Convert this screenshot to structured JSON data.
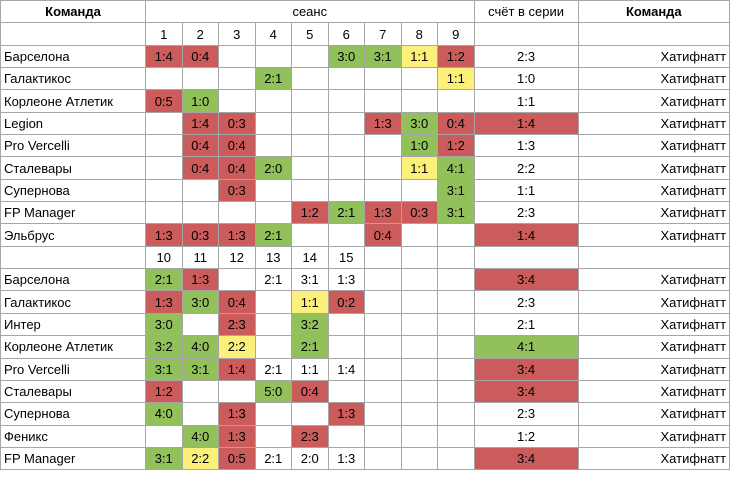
{
  "header": {
    "team_left": "Команда",
    "session": "сеанс",
    "series_score": "счёт в серии",
    "team_right": "Команда"
  },
  "colors": {
    "loss": "#cc5b5b",
    "win": "#92c05a",
    "draw": "#fbf07a"
  },
  "sections": [
    {
      "session_numbers": [
        "1",
        "2",
        "3",
        "4",
        "5",
        "6",
        "7",
        "8",
        "9"
      ],
      "rows": [
        {
          "team": "Барселона",
          "cells": [
            {
              "v": "1:4",
              "c": "r"
            },
            {
              "v": "0:4",
              "c": "r"
            },
            {
              "v": "",
              "c": ""
            },
            {
              "v": "",
              "c": ""
            },
            {
              "v": "",
              "c": ""
            },
            {
              "v": "3:0",
              "c": "g"
            },
            {
              "v": "3:1",
              "c": "g"
            },
            {
              "v": "1:1",
              "c": "y"
            },
            {
              "v": "1:2",
              "c": "r"
            }
          ],
          "series": {
            "v": "2:3",
            "c": ""
          },
          "opponent": "Хатифнатт"
        },
        {
          "team": "Галактикос",
          "cells": [
            {
              "v": "",
              "c": ""
            },
            {
              "v": "",
              "c": ""
            },
            {
              "v": "",
              "c": ""
            },
            {
              "v": "2:1",
              "c": "g"
            },
            {
              "v": "",
              "c": ""
            },
            {
              "v": "",
              "c": ""
            },
            {
              "v": "",
              "c": ""
            },
            {
              "v": "",
              "c": ""
            },
            {
              "v": "1:1",
              "c": "y"
            }
          ],
          "series": {
            "v": "1:0",
            "c": ""
          },
          "opponent": "Хатифнатт"
        },
        {
          "team": "Корлеоне Атлетик",
          "cells": [
            {
              "v": "0:5",
              "c": "r"
            },
            {
              "v": "1:0",
              "c": "g"
            },
            {
              "v": "",
              "c": ""
            },
            {
              "v": "",
              "c": ""
            },
            {
              "v": "",
              "c": ""
            },
            {
              "v": "",
              "c": ""
            },
            {
              "v": "",
              "c": ""
            },
            {
              "v": "",
              "c": ""
            },
            {
              "v": "",
              "c": ""
            }
          ],
          "series": {
            "v": "1:1",
            "c": ""
          },
          "opponent": "Хатифнатт"
        },
        {
          "team": "Legion",
          "cells": [
            {
              "v": "",
              "c": ""
            },
            {
              "v": "1:4",
              "c": "r"
            },
            {
              "v": "0:3",
              "c": "r"
            },
            {
              "v": "",
              "c": ""
            },
            {
              "v": "",
              "c": ""
            },
            {
              "v": "",
              "c": ""
            },
            {
              "v": "1:3",
              "c": "r"
            },
            {
              "v": "3:0",
              "c": "g"
            },
            {
              "v": "0:4",
              "c": "r"
            }
          ],
          "series": {
            "v": "1:4",
            "c": "r"
          },
          "opponent": "Хатифнатт"
        },
        {
          "team": "Pro Vercelli",
          "cells": [
            {
              "v": "",
              "c": ""
            },
            {
              "v": "0:4",
              "c": "r"
            },
            {
              "v": "0:4",
              "c": "r"
            },
            {
              "v": "",
              "c": ""
            },
            {
              "v": "",
              "c": ""
            },
            {
              "v": "",
              "c": ""
            },
            {
              "v": "",
              "c": ""
            },
            {
              "v": "1:0",
              "c": "g"
            },
            {
              "v": "1:2",
              "c": "r"
            }
          ],
          "series": {
            "v": "1:3",
            "c": ""
          },
          "opponent": "Хатифнатт"
        },
        {
          "team": "Сталевары",
          "cells": [
            {
              "v": "",
              "c": ""
            },
            {
              "v": "0:4",
              "c": "r"
            },
            {
              "v": "0:4",
              "c": "r"
            },
            {
              "v": "2:0",
              "c": "g"
            },
            {
              "v": "",
              "c": ""
            },
            {
              "v": "",
              "c": ""
            },
            {
              "v": "",
              "c": ""
            },
            {
              "v": "1:1",
              "c": "y"
            },
            {
              "v": "4:1",
              "c": "g"
            }
          ],
          "series": {
            "v": "2:2",
            "c": ""
          },
          "opponent": "Хатифнатт"
        },
        {
          "team": "Супернова",
          "cells": [
            {
              "v": "",
              "c": ""
            },
            {
              "v": "",
              "c": ""
            },
            {
              "v": "0:3",
              "c": "r"
            },
            {
              "v": "",
              "c": ""
            },
            {
              "v": "",
              "c": ""
            },
            {
              "v": "",
              "c": ""
            },
            {
              "v": "",
              "c": ""
            },
            {
              "v": "",
              "c": ""
            },
            {
              "v": "3:1",
              "c": "g"
            }
          ],
          "series": {
            "v": "1:1",
            "c": ""
          },
          "opponent": "Хатифнатт"
        },
        {
          "team": "FP Manager",
          "cells": [
            {
              "v": "",
              "c": ""
            },
            {
              "v": "",
              "c": ""
            },
            {
              "v": "",
              "c": ""
            },
            {
              "v": "",
              "c": ""
            },
            {
              "v": "1:2",
              "c": "r"
            },
            {
              "v": "2:1",
              "c": "g"
            },
            {
              "v": "1:3",
              "c": "r"
            },
            {
              "v": "0:3",
              "c": "r"
            },
            {
              "v": "3:1",
              "c": "g"
            }
          ],
          "series": {
            "v": "2:3",
            "c": ""
          },
          "opponent": "Хатифнатт"
        },
        {
          "team": "Эльбрус",
          "cells": [
            {
              "v": "1:3",
              "c": "r"
            },
            {
              "v": "0:3",
              "c": "r"
            },
            {
              "v": "1:3",
              "c": "r"
            },
            {
              "v": "2:1",
              "c": "g"
            },
            {
              "v": "",
              "c": ""
            },
            {
              "v": "",
              "c": ""
            },
            {
              "v": "0:4",
              "c": "r"
            },
            {
              "v": "",
              "c": ""
            },
            {
              "v": "",
              "c": ""
            }
          ],
          "series": {
            "v": "1:4",
            "c": "r"
          },
          "opponent": "Хатифнатт"
        }
      ]
    },
    {
      "session_numbers": [
        "10",
        "11",
        "12",
        "13",
        "14",
        "15",
        "",
        "",
        ""
      ],
      "rows": [
        {
          "team": "Барселона",
          "cells": [
            {
              "v": "2:1",
              "c": "g"
            },
            {
              "v": "1:3",
              "c": "r"
            },
            {
              "v": "",
              "c": ""
            },
            {
              "v": "2:1",
              "c": ""
            },
            {
              "v": "3:1",
              "c": ""
            },
            {
              "v": "1:3",
              "c": ""
            },
            {
              "v": "",
              "c": ""
            },
            {
              "v": "",
              "c": ""
            },
            {
              "v": "",
              "c": ""
            }
          ],
          "series": {
            "v": "3:4",
            "c": "r"
          },
          "opponent": "Хатифнатт"
        },
        {
          "team": "Галактикос",
          "cells": [
            {
              "v": "1:3",
              "c": "r"
            },
            {
              "v": "3:0",
              "c": "g"
            },
            {
              "v": "0:4",
              "c": "r"
            },
            {
              "v": "",
              "c": ""
            },
            {
              "v": "1:1",
              "c": "y"
            },
            {
              "v": "0:2",
              "c": "r"
            },
            {
              "v": "",
              "c": ""
            },
            {
              "v": "",
              "c": ""
            },
            {
              "v": "",
              "c": ""
            }
          ],
          "series": {
            "v": "2:3",
            "c": ""
          },
          "opponent": "Хатифнатт"
        },
        {
          "team": "Интер",
          "cells": [
            {
              "v": "3:0",
              "c": "g"
            },
            {
              "v": "",
              "c": ""
            },
            {
              "v": "2:3",
              "c": "r"
            },
            {
              "v": "",
              "c": ""
            },
            {
              "v": "3:2",
              "c": "g"
            },
            {
              "v": "",
              "c": ""
            },
            {
              "v": "",
              "c": ""
            },
            {
              "v": "",
              "c": ""
            },
            {
              "v": "",
              "c": ""
            }
          ],
          "series": {
            "v": "2:1",
            "c": ""
          },
          "opponent": "Хатифнатт"
        },
        {
          "team": "Корлеоне Атлетик",
          "cells": [
            {
              "v": "3:2",
              "c": "g"
            },
            {
              "v": "4:0",
              "c": "g"
            },
            {
              "v": "2:2",
              "c": "y"
            },
            {
              "v": "",
              "c": ""
            },
            {
              "v": "2:1",
              "c": "g"
            },
            {
              "v": "",
              "c": ""
            },
            {
              "v": "",
              "c": ""
            },
            {
              "v": "",
              "c": ""
            },
            {
              "v": "",
              "c": ""
            }
          ],
          "series": {
            "v": "4:1",
            "c": "g"
          },
          "opponent": "Хатифнатт"
        },
        {
          "team": "Pro Vercelli",
          "cells": [
            {
              "v": "3:1",
              "c": "g"
            },
            {
              "v": "3:1",
              "c": "g"
            },
            {
              "v": "1:4",
              "c": "r"
            },
            {
              "v": "2:1",
              "c": ""
            },
            {
              "v": "1:1",
              "c": ""
            },
            {
              "v": "1:4",
              "c": ""
            },
            {
              "v": "",
              "c": ""
            },
            {
              "v": "",
              "c": ""
            },
            {
              "v": "",
              "c": ""
            }
          ],
          "series": {
            "v": "3:4",
            "c": "r"
          },
          "opponent": "Хатифнатт"
        },
        {
          "team": "Сталевары",
          "cells": [
            {
              "v": "1:2",
              "c": "r"
            },
            {
              "v": "",
              "c": ""
            },
            {
              "v": "",
              "c": ""
            },
            {
              "v": "5:0",
              "c": "g"
            },
            {
              "v": "0:4",
              "c": "r"
            },
            {
              "v": "",
              "c": ""
            },
            {
              "v": "",
              "c": ""
            },
            {
              "v": "",
              "c": ""
            },
            {
              "v": "",
              "c": ""
            }
          ],
          "series": {
            "v": "3:4",
            "c": "r"
          },
          "opponent": "Хатифнатт"
        },
        {
          "team": "Супернова",
          "cells": [
            {
              "v": "4:0",
              "c": "g"
            },
            {
              "v": "",
              "c": ""
            },
            {
              "v": "1:3",
              "c": "r"
            },
            {
              "v": "",
              "c": ""
            },
            {
              "v": "",
              "c": ""
            },
            {
              "v": "1:3",
              "c": "r"
            },
            {
              "v": "",
              "c": ""
            },
            {
              "v": "",
              "c": ""
            },
            {
              "v": "",
              "c": ""
            }
          ],
          "series": {
            "v": "2:3",
            "c": ""
          },
          "opponent": "Хатифнатт"
        },
        {
          "team": "Феникс",
          "cells": [
            {
              "v": "",
              "c": ""
            },
            {
              "v": "4:0",
              "c": "g"
            },
            {
              "v": "1:3",
              "c": "r"
            },
            {
              "v": "",
              "c": ""
            },
            {
              "v": "2:3",
              "c": "r"
            },
            {
              "v": "",
              "c": ""
            },
            {
              "v": "",
              "c": ""
            },
            {
              "v": "",
              "c": ""
            },
            {
              "v": "",
              "c": ""
            }
          ],
          "series": {
            "v": "1:2",
            "c": ""
          },
          "opponent": "Хатифнатт"
        },
        {
          "team": "FP Manager",
          "cells": [
            {
              "v": "3:1",
              "c": "g"
            },
            {
              "v": "2:2",
              "c": "y"
            },
            {
              "v": "0:5",
              "c": "r"
            },
            {
              "v": "2:1",
              "c": ""
            },
            {
              "v": "2:0",
              "c": ""
            },
            {
              "v": "1:3",
              "c": ""
            },
            {
              "v": "",
              "c": ""
            },
            {
              "v": "",
              "c": ""
            },
            {
              "v": "",
              "c": ""
            }
          ],
          "series": {
            "v": "3:4",
            "c": "r"
          },
          "opponent": "Хатифнатт"
        }
      ]
    }
  ]
}
